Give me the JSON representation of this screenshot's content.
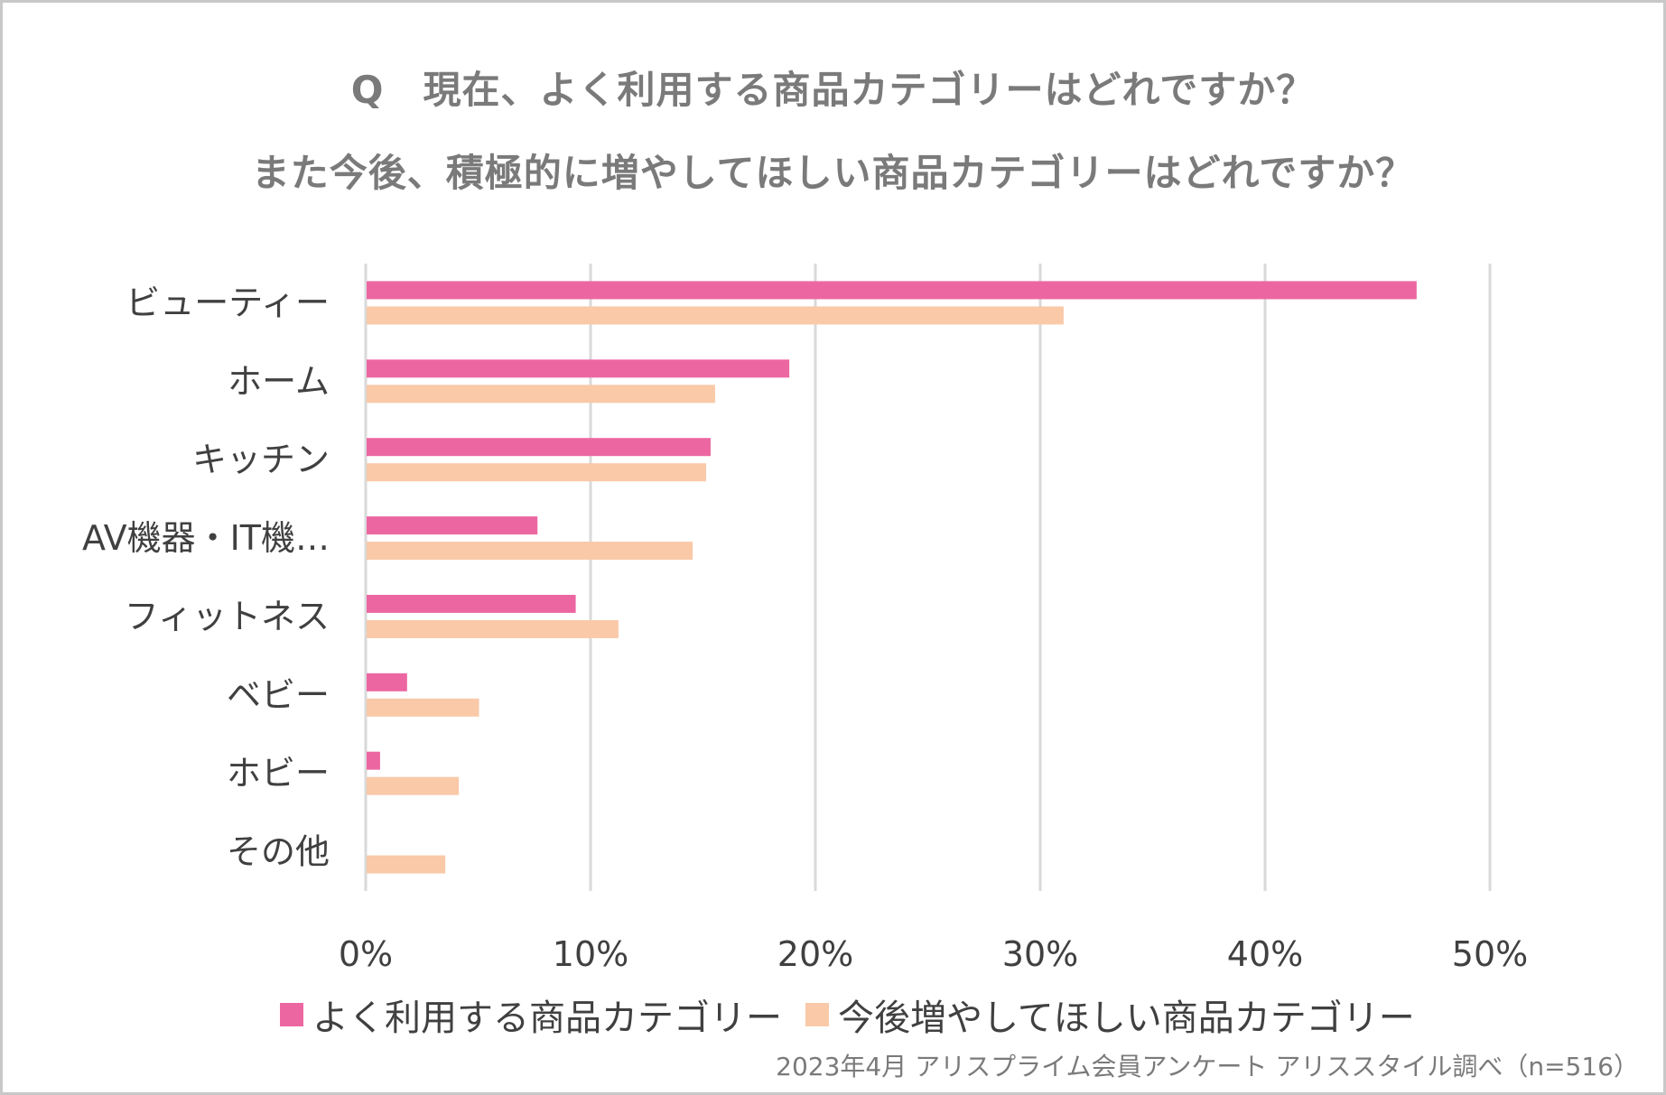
{
  "title_line1": "Q　現在、よく利用する商品カテゴリーはどれですか？",
  "title_line2": "また今後、積極的に増やしてほしい商品カテゴリーはどれですか？",
  "source_note": "2023年4月 アリスプライム会員アンケート アリススタイル調べ（n=516）",
  "colors": {
    "series1": "#ec67a2",
    "series2": "#f9c9a8",
    "grid": "#d9d9d9",
    "text": "#404040"
  },
  "chart_data": {
    "type": "bar",
    "orientation": "horizontal",
    "categories": [
      "ビューティー",
      "ホーム",
      "キッチン",
      "AV機器・IT機…",
      "フィットネス",
      "ベビー",
      "ホビー",
      "その他"
    ],
    "series": [
      {
        "name": "よく利用する商品カテゴリー",
        "values": [
          46.7,
          18.8,
          15.3,
          7.6,
          9.3,
          1.8,
          0.6,
          0
        ]
      },
      {
        "name": "今後増やしてほしい商品カテゴリー",
        "values": [
          31.0,
          15.5,
          15.1,
          14.5,
          11.2,
          5.0,
          4.1,
          3.5
        ]
      }
    ],
    "xlim": [
      0,
      50
    ],
    "xticks": [
      "0%",
      "10%",
      "20%",
      "30%",
      "40%",
      "50%"
    ],
    "grid": true,
    "legend_position": "bottom"
  }
}
